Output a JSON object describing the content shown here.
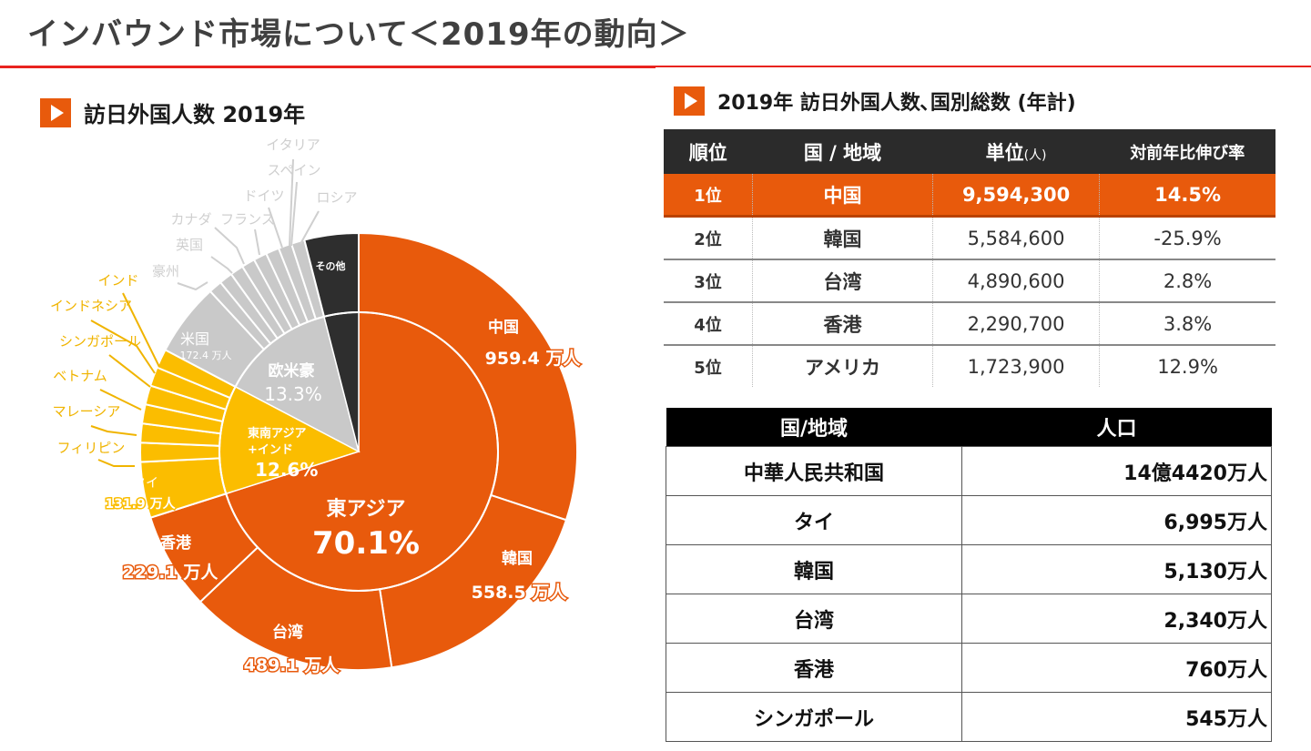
{
  "page": {
    "title": "インバウンド市場について＜2019年の動向＞",
    "colors": {
      "accent_red": "#e8231f",
      "orange": "#e85a0c",
      "yellow": "#fbbd00",
      "gray": "#c9c9c9",
      "dark": "#2e2e2e"
    }
  },
  "left_section": {
    "title": "訪日外国人数 2019年",
    "icon": "play-icon"
  },
  "chart_data": {
    "type": "sunburst",
    "title": "訪日外国人数 2019年",
    "unit": "万人",
    "inner_ring": [
      {
        "name": "東アジア",
        "label": "東アジア",
        "percent": 70.1,
        "color": "#e85a0c"
      },
      {
        "name": "東南アジア+インド",
        "label_lines": [
          "東南アジア",
          "+インド"
        ],
        "percent": 12.6,
        "color": "#fbbd00"
      },
      {
        "name": "欧米豪",
        "label": "欧米豪",
        "percent": 13.3,
        "color": "#c9c9c9"
      },
      {
        "name": "その他",
        "label": "",
        "percent": 4.0,
        "color": "#2e2e2e"
      }
    ],
    "outer_ring": [
      {
        "name": "中国",
        "value": 959.4,
        "value_label": "959.4 万人",
        "group": "東アジア"
      },
      {
        "name": "韓国",
        "value": 558.5,
        "value_label": "558.5 万人",
        "group": "東アジア"
      },
      {
        "name": "台湾",
        "value": 489.1,
        "value_label": "489.1 万人",
        "group": "東アジア"
      },
      {
        "name": "香港",
        "value": 229.1,
        "value_label": "229.1 万人",
        "group": "東アジア"
      },
      {
        "name": "タイ",
        "value": 131.9,
        "value_label": "131.9 万人",
        "group": "東南アジア+インド"
      },
      {
        "name": "フィリピン",
        "group": "東南アジア+インド"
      },
      {
        "name": "マレーシア",
        "group": "東南アジア+インド"
      },
      {
        "name": "ベトナム",
        "group": "東南アジア+インド"
      },
      {
        "name": "シンガポール",
        "group": "東南アジア+インド"
      },
      {
        "name": "インドネシア",
        "group": "東南アジア+インド"
      },
      {
        "name": "インド",
        "group": "東南アジア+インド"
      },
      {
        "name": "米国",
        "value": 172.4,
        "value_label": "172.4 万人",
        "group": "欧米豪"
      },
      {
        "name": "豪州",
        "group": "欧米豪"
      },
      {
        "name": "英国",
        "group": "欧米豪"
      },
      {
        "name": "カナダ",
        "group": "欧米豪"
      },
      {
        "name": "フランス",
        "group": "欧米豪"
      },
      {
        "name": "ドイツ",
        "group": "欧米豪"
      },
      {
        "name": "イタリア",
        "group": "欧米豪"
      },
      {
        "name": "スペイン",
        "group": "欧米豪"
      },
      {
        "name": "ロシア",
        "group": "欧米豪"
      },
      {
        "name": "その他",
        "group": "その他"
      }
    ]
  },
  "right_section": {
    "title": "2019年 訪日外国人数､国別総数 (年計)",
    "icon": "play-icon"
  },
  "rank_table": {
    "headers": {
      "rank": "順位",
      "country": "国 / 地域",
      "count": "単位",
      "count_unit": "(人)",
      "growth": "対前年比伸び率"
    },
    "rows": [
      {
        "rank": "1位",
        "country": "中国",
        "count": "9,594,300",
        "growth": "14.5%"
      },
      {
        "rank": "2位",
        "country": "韓国",
        "count": "5,584,600",
        "growth": "-25.9%"
      },
      {
        "rank": "3位",
        "country": "台湾",
        "count": "4,890,600",
        "growth": "2.8%"
      },
      {
        "rank": "4位",
        "country": "香港",
        "count": "2,290,700",
        "growth": "3.8%"
      },
      {
        "rank": "5位",
        "country": "アメリカ",
        "count": "1,723,900",
        "growth": "12.9%"
      }
    ]
  },
  "population_table": {
    "headers": {
      "country": "国/地域",
      "population": "人口"
    },
    "rows": [
      {
        "country": "中華人民共和国",
        "population": "14億4420万人"
      },
      {
        "country": "タイ",
        "population": "6,995万人"
      },
      {
        "country": "韓国",
        "population": "5,130万人"
      },
      {
        "country": "台湾",
        "population": "2,340万人"
      },
      {
        "country": "香港",
        "population": "760万人"
      },
      {
        "country": "シンガポール",
        "population": "545万人"
      }
    ]
  }
}
